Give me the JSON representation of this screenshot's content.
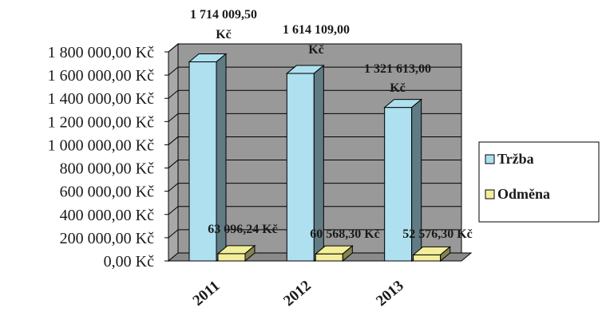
{
  "chart_data": {
    "type": "bar",
    "categories": [
      "2011",
      "2012",
      "2013"
    ],
    "series": [
      {
        "name": "Tržba",
        "values": [
          1714009.5,
          1614109.0,
          1321613.0
        ],
        "labels": [
          "1 714 009,50 Kč",
          "1 614 109,00 Kč",
          "1 321 613,00 Kč"
        ],
        "color": "#aee0ef"
      },
      {
        "name": "Odměna",
        "values": [
          63096.24,
          60568.3,
          52576.3
        ],
        "labels": [
          "63 096,24 Kč",
          "60 568,30 Kč",
          "52 576,30 Kč"
        ],
        "color": "#f2ee9a"
      }
    ],
    "y_ticks": [
      "0,00 Kč",
      "200 000,00 Kč",
      "400 000,00 Kč",
      "600 000,00 Kč",
      "800 000,00 Kč",
      "1 000 000,00 Kč",
      "1 200 000,00 Kč",
      "1 400 000,00 Kč",
      "1 600 000,00 Kč",
      "1 800 000,00 Kč"
    ],
    "ylim": [
      0,
      1800000
    ],
    "title": "",
    "xlabel": "",
    "ylabel": "",
    "grid": true,
    "legend": "right",
    "wall_color": "#999999"
  }
}
